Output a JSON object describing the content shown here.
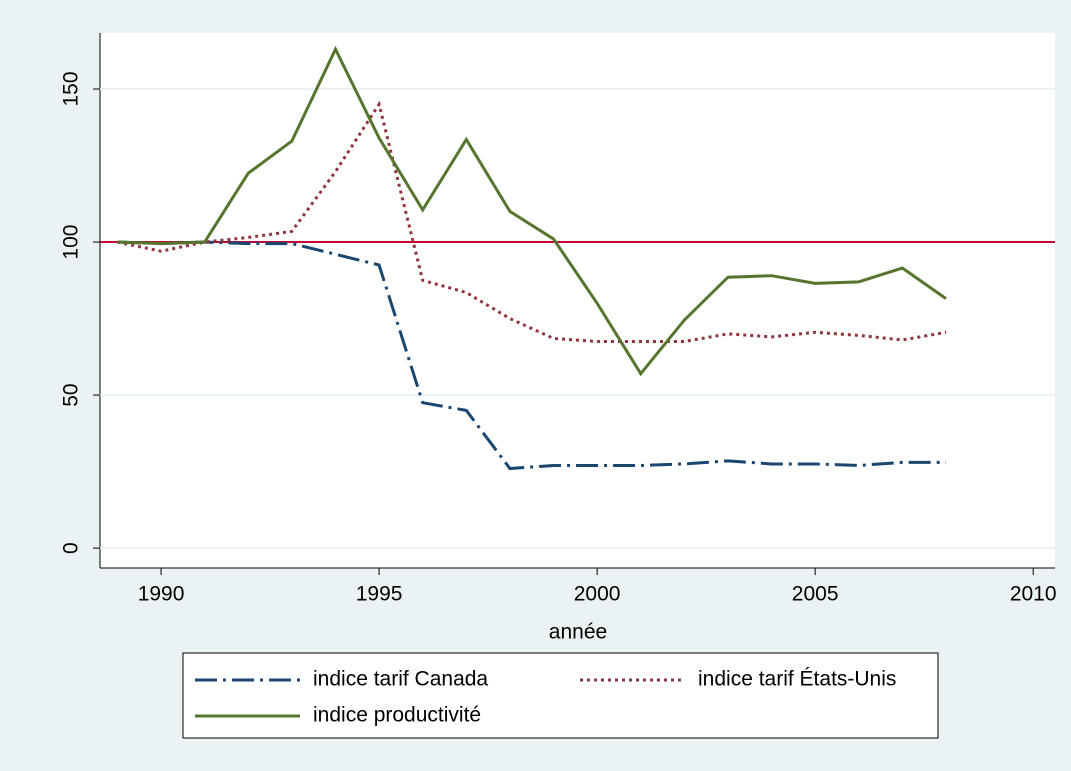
{
  "chart_data": {
    "type": "line",
    "x_label": "année",
    "x": [
      1989,
      1990,
      1991,
      1992,
      1993,
      1994,
      1995,
      1996,
      1997,
      1998,
      1999,
      2000,
      2001,
      2002,
      2003,
      2004,
      2005,
      2006,
      2007,
      2008
    ],
    "series": [
      {
        "name": "indice tarif Canada",
        "color": "#1a476f",
        "dash": "22 6 3 6",
        "values": [
          100,
          99.5,
          100,
          99.5,
          99.5,
          96,
          92.5,
          47.5,
          45,
          26,
          27,
          27,
          27,
          27.5,
          28.5,
          27.5,
          27.5,
          27,
          28,
          28
        ]
      },
      {
        "name": "indice tarif États-Unis",
        "color": "#90353b",
        "dash": "3 4",
        "values": [
          100,
          97,
          100,
          101.5,
          103.5,
          123,
          145,
          87.5,
          83.5,
          75,
          68.5,
          67.5,
          67.5,
          67.5,
          70,
          69,
          70.5,
          69.5,
          68,
          70.5
        ]
      },
      {
        "name": "indice productivité",
        "color": "#55752f",
        "dash": "none",
        "values": [
          100,
          99.5,
          100,
          122.5,
          133,
          163,
          134,
          110.5,
          133.5,
          110,
          101,
          80,
          57,
          74.5,
          88.5,
          89,
          86.5,
          87,
          91.5,
          81.5
        ]
      }
    ],
    "reference_line": {
      "value": 100,
      "color": "#c10534"
    },
    "xlim": [
      1988.6,
      2010.5
    ],
    "xticks": [
      1990,
      1995,
      2000,
      2005,
      2010
    ],
    "ylim": [
      -6.5,
      168.3
    ],
    "yticks": [
      0,
      50,
      100,
      150
    ],
    "grid": true
  }
}
